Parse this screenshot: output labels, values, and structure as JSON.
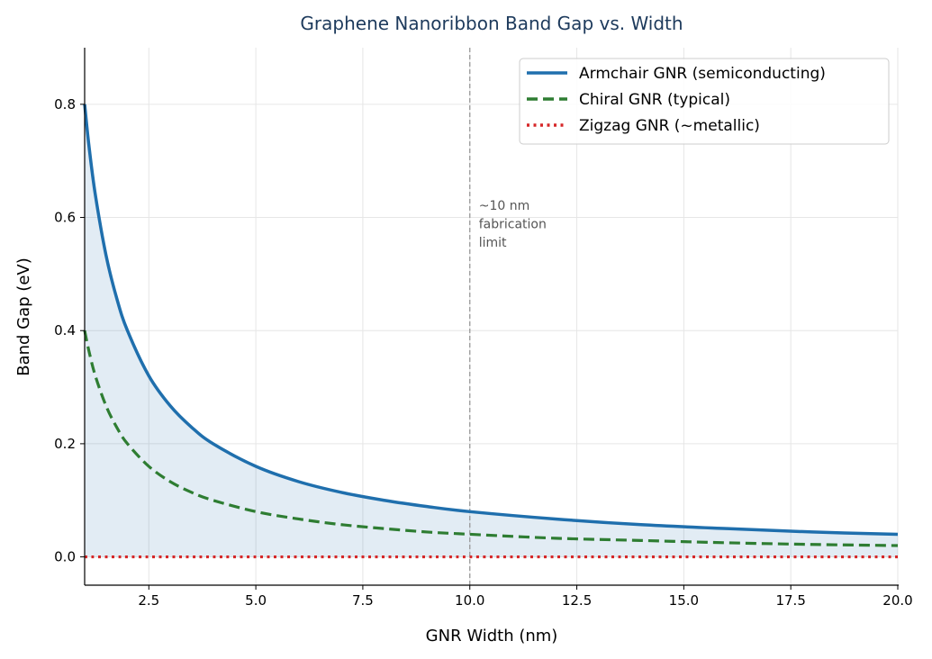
{
  "chart_data": {
    "type": "line",
    "title": "Graphene Nanoribbon Band Gap vs. Width",
    "xlabel": "GNR Width (nm)",
    "ylabel": "Band Gap (eV)",
    "xlim": [
      1,
      20
    ],
    "ylim": [
      -0.05,
      0.9
    ],
    "xticks": [
      "2.5",
      "5.0",
      "7.5",
      "10.0",
      "12.5",
      "15.0",
      "17.5",
      "20.0"
    ],
    "yticks": [
      "0.0",
      "0.2",
      "0.4",
      "0.6",
      "0.8"
    ],
    "grid": true,
    "legend_position": "top-right",
    "x": [
      1,
      1.1,
      1.25,
      1.5,
      1.75,
      2,
      2.5,
      3,
      3.5,
      4,
      5,
      6,
      7,
      8,
      9,
      10,
      12,
      14,
      16,
      18,
      20
    ],
    "series": [
      {
        "name": "Armchair GNR (semiconducting)",
        "color": "#1f6fad",
        "style": "solid",
        "fill_to_zero": true,
        "values": [
          0.8,
          0.727,
          0.64,
          0.533,
          0.457,
          0.4,
          0.32,
          0.267,
          0.229,
          0.2,
          0.16,
          0.133,
          0.114,
          0.1,
          0.089,
          0.08,
          0.067,
          0.057,
          0.05,
          0.044,
          0.04
        ]
      },
      {
        "name": "Chiral GNR (typical)",
        "color": "#2e7d32",
        "style": "dashed",
        "values": [
          0.4,
          0.364,
          0.32,
          0.267,
          0.229,
          0.2,
          0.16,
          0.133,
          0.114,
          0.1,
          0.08,
          0.067,
          0.057,
          0.05,
          0.044,
          0.04,
          0.033,
          0.029,
          0.025,
          0.022,
          0.02
        ]
      },
      {
        "name": "Zigzag GNR (~metallic)",
        "color": "#d62728",
        "style": "dotted",
        "values": [
          0,
          0,
          0,
          0,
          0,
          0,
          0,
          0,
          0,
          0,
          0,
          0,
          0,
          0,
          0,
          0,
          0,
          0,
          0,
          0,
          0
        ]
      }
    ],
    "annotations": [
      {
        "x": 10,
        "type": "vline",
        "color": "#999999",
        "text_lines": [
          "~10 nm",
          "fabrication",
          "limit"
        ]
      }
    ]
  }
}
